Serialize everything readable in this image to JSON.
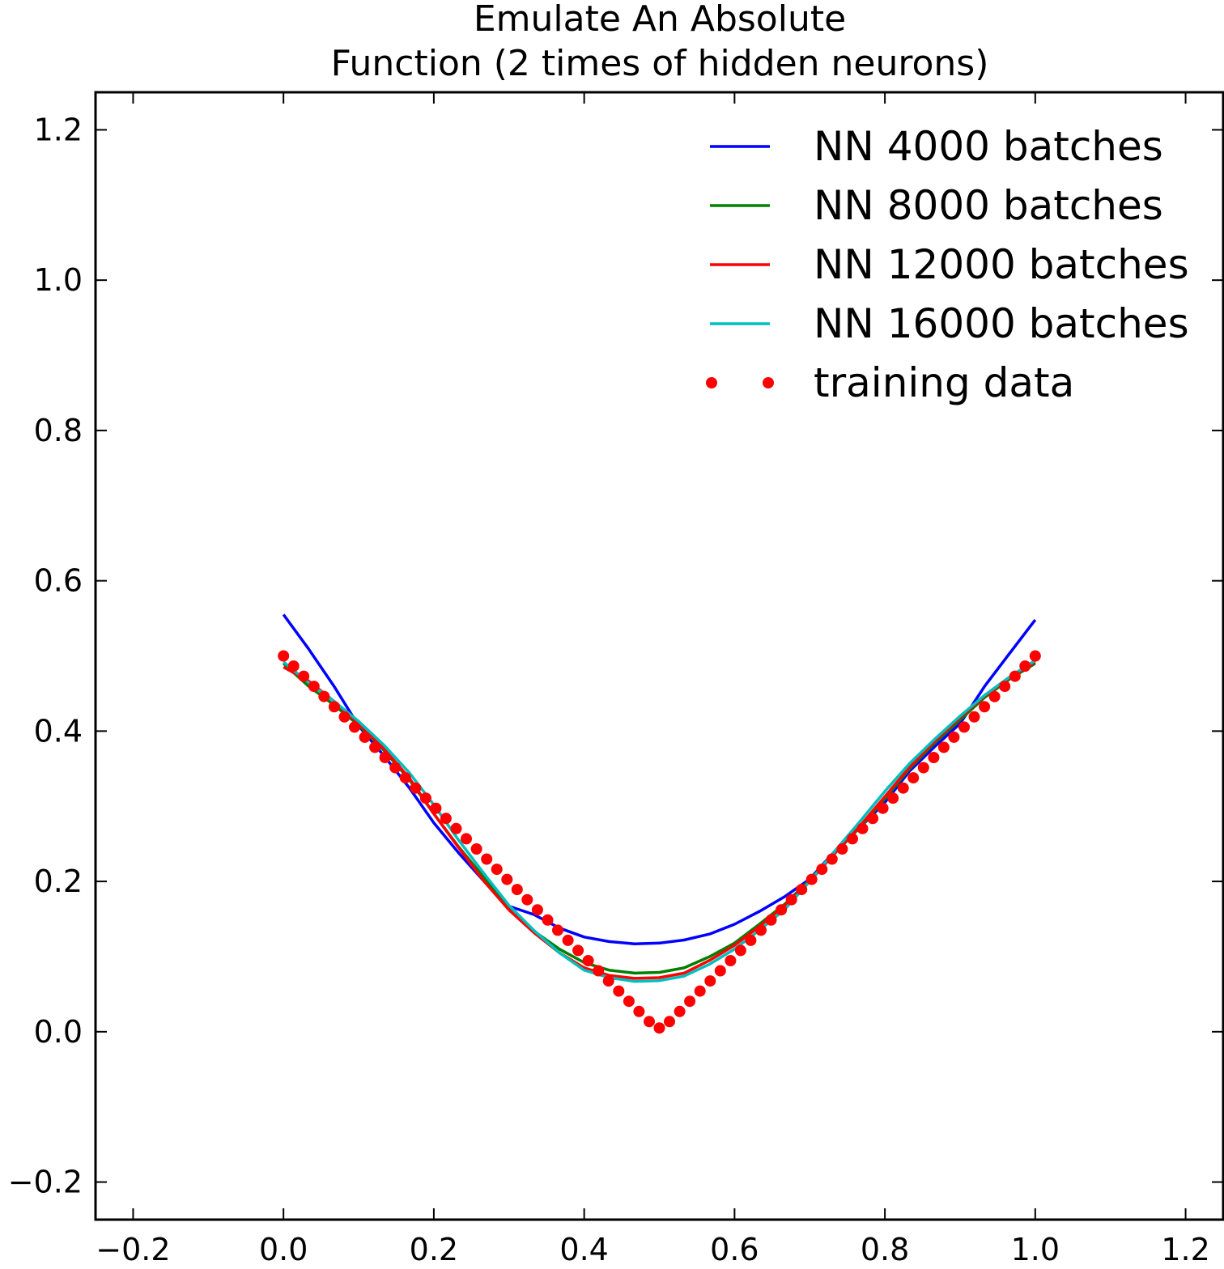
{
  "chart_data": {
    "type": "line",
    "title": [
      "Emulate An Absolute",
      "Function (2 times of hidden neurons)"
    ],
    "xlabel": "",
    "ylabel": "",
    "xlim": [
      -0.25,
      1.25
    ],
    "ylim": [
      -0.25,
      1.25
    ],
    "xticks": [
      -0.2,
      0.0,
      0.2,
      0.4,
      0.6,
      0.8,
      1.0,
      1.2
    ],
    "xtick_labels": [
      "−0.2",
      "0.0",
      "0.2",
      "0.4",
      "0.6",
      "0.8",
      "1.0",
      "1.2"
    ],
    "yticks": [
      -0.2,
      0.0,
      0.2,
      0.4,
      0.6,
      0.8,
      1.0,
      1.2
    ],
    "ytick_labels": [
      "−0.2",
      "0.0",
      "0.2",
      "0.4",
      "0.6",
      "0.8",
      "1.0",
      "1.2"
    ],
    "grid": false,
    "legend_position": "top-right",
    "x": [
      0.0,
      0.033,
      0.067,
      0.1,
      0.133,
      0.167,
      0.2,
      0.233,
      0.267,
      0.3,
      0.333,
      0.367,
      0.4,
      0.433,
      0.467,
      0.5,
      0.533,
      0.567,
      0.6,
      0.633,
      0.667,
      0.7,
      0.733,
      0.767,
      0.8,
      0.833,
      0.867,
      0.9,
      0.933,
      0.967,
      1.0
    ],
    "series": [
      {
        "name": "NN 4000 batches",
        "color": "#0000ff",
        "style": "line",
        "values": [
          0.555,
          0.51,
          0.46,
          0.407,
          0.368,
          0.325,
          0.278,
          0.238,
          0.2,
          0.167,
          0.156,
          0.138,
          0.126,
          0.12,
          0.117,
          0.118,
          0.122,
          0.13,
          0.143,
          0.16,
          0.18,
          0.203,
          0.24,
          0.272,
          0.305,
          0.347,
          0.38,
          0.41,
          0.46,
          0.505,
          0.548
        ]
      },
      {
        "name": "NN 8000 batches",
        "color": "#008000",
        "style": "line",
        "values": [
          0.49,
          0.46,
          0.435,
          0.408,
          0.375,
          0.336,
          0.29,
          0.246,
          0.205,
          0.165,
          0.134,
          0.11,
          0.092,
          0.082,
          0.078,
          0.079,
          0.085,
          0.1,
          0.118,
          0.143,
          0.17,
          0.202,
          0.237,
          0.272,
          0.31,
          0.35,
          0.385,
          0.415,
          0.445,
          0.47,
          0.49
        ]
      },
      {
        "name": "NN 12000 batches",
        "color": "#ff0000",
        "style": "line",
        "values": [
          0.485,
          0.467,
          0.44,
          0.41,
          0.377,
          0.338,
          0.29,
          0.245,
          0.2,
          0.162,
          0.132,
          0.105,
          0.085,
          0.075,
          0.071,
          0.072,
          0.078,
          0.095,
          0.115,
          0.14,
          0.168,
          0.2,
          0.237,
          0.274,
          0.313,
          0.352,
          0.387,
          0.418,
          0.447,
          0.472,
          0.492
        ]
      },
      {
        "name": "NN 16000 batches",
        "color": "#00bfbf",
        "style": "line",
        "values": [
          0.492,
          0.465,
          0.44,
          0.413,
          0.382,
          0.345,
          0.302,
          0.255,
          0.21,
          0.168,
          0.135,
          0.105,
          0.082,
          0.072,
          0.067,
          0.068,
          0.074,
          0.09,
          0.11,
          0.135,
          0.163,
          0.2,
          0.24,
          0.28,
          0.32,
          0.357,
          0.39,
          0.42,
          0.448,
          0.473,
          0.494
        ]
      },
      {
        "name": "training data",
        "color": "#ff0000",
        "style": "dots",
        "x": [
          0.0,
          0.0135,
          0.027,
          0.0405,
          0.054,
          0.0676,
          0.0811,
          0.0946,
          0.1081,
          0.1216,
          0.1351,
          0.1486,
          0.1622,
          0.1757,
          0.1892,
          0.2027,
          0.2162,
          0.2297,
          0.2432,
          0.2568,
          0.2703,
          0.2838,
          0.2973,
          0.3108,
          0.3243,
          0.3378,
          0.3514,
          0.3649,
          0.3784,
          0.3919,
          0.4054,
          0.4189,
          0.4324,
          0.4459,
          0.4595,
          0.473,
          0.4865,
          0.5,
          0.5135,
          0.527,
          0.5405,
          0.5541,
          0.5676,
          0.5811,
          0.5946,
          0.6081,
          0.6216,
          0.6351,
          0.6486,
          0.6622,
          0.6757,
          0.6892,
          0.7027,
          0.7162,
          0.7297,
          0.7432,
          0.7568,
          0.7703,
          0.7838,
          0.7973,
          0.8108,
          0.8243,
          0.8378,
          0.8514,
          0.8649,
          0.8784,
          0.8919,
          0.9054,
          0.9189,
          0.9324,
          0.9459,
          0.9595,
          0.973,
          0.9865,
          1.0
        ],
        "values": [
          0.5,
          0.4865,
          0.473,
          0.4595,
          0.446,
          0.4324,
          0.4189,
          0.4054,
          0.3919,
          0.3784,
          0.3649,
          0.3514,
          0.3378,
          0.3243,
          0.3108,
          0.2973,
          0.2838,
          0.2703,
          0.2568,
          0.2432,
          0.2297,
          0.2162,
          0.2027,
          0.1892,
          0.1757,
          0.1622,
          0.1486,
          0.1351,
          0.1216,
          0.1081,
          0.0946,
          0.0811,
          0.0676,
          0.0541,
          0.0405,
          0.027,
          0.0135,
          0.005,
          0.0135,
          0.027,
          0.0405,
          0.0541,
          0.0676,
          0.0811,
          0.0946,
          0.1081,
          0.1216,
          0.1351,
          0.1486,
          0.1622,
          0.1757,
          0.1892,
          0.2027,
          0.2162,
          0.2297,
          0.2432,
          0.2568,
          0.2703,
          0.2838,
          0.2973,
          0.3108,
          0.3243,
          0.3378,
          0.3514,
          0.3649,
          0.3784,
          0.3919,
          0.4054,
          0.4189,
          0.4324,
          0.4459,
          0.4595,
          0.473,
          0.4865,
          0.5
        ]
      }
    ]
  }
}
